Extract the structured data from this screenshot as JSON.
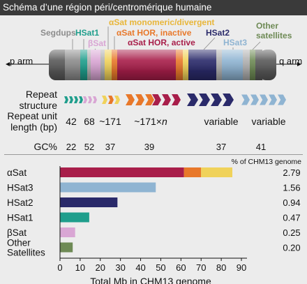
{
  "header": {
    "title": "Schéma d’une région péri/centromérique humaine"
  },
  "diagram": {
    "labels": {
      "segdups": "Segdups",
      "hsat1": "HSat1",
      "bsat": "βSat",
      "asat_mono": "αSat monomeric/divergent",
      "asat_inactive": "αSat HOR, inactive",
      "asat_active": "αSat HOR, active",
      "hsat2": "HSat2",
      "hsat3": "HSat3",
      "other_satellites": "Other\nsatellites",
      "p_arm": "p arm",
      "q_arm": "q arm"
    },
    "rows": {
      "repeat_structure": "Repeat\nstructure",
      "unit_length": "Repeat unit\nlength (bp)",
      "gc": "GC%"
    },
    "unit_lengths": [
      "42",
      "68",
      "~171",
      "~171×n",
      "variable",
      "variable"
    ],
    "gc_values": [
      "22",
      "52",
      "37",
      "39",
      "37",
      "41"
    ],
    "colors": {
      "segdups": "#8c8c8c",
      "hsat1": "#1f9e8c",
      "bsat": "#d9a6d4",
      "asat_mono": "#f0d25a",
      "asat_inactive": "#e8782a",
      "asat_active": "#a81e4a",
      "hsat2": "#2a2a6a",
      "hsat3": "#8fb4d2",
      "other_satellites": "#6e8a55"
    }
  },
  "chart_data": {
    "type": "bar",
    "orientation": "horizontal",
    "stacked": true,
    "categories": [
      "αSat",
      "HSat3",
      "HSat2",
      "HSat1",
      "βSat",
      "Other\nSatellites"
    ],
    "series": [
      {
        "name": "αSat HOR, active",
        "values": [
          61.5,
          47.5,
          28.5,
          14.5,
          7.5,
          6.3
        ]
      },
      {
        "name": "αSat HOR, inactive",
        "values": [
          8.5,
          0,
          0,
          0,
          0,
          0
        ]
      },
      {
        "name": "αSat monomeric/divergent",
        "values": [
          15.5,
          0,
          0,
          0,
          0,
          0
        ]
      }
    ],
    "bar_colors": [
      "#a81e4a",
      "#8fb4d2",
      "#2a2a6a",
      "#1f9e8c",
      "#d9a6d4",
      "#6e8a55"
    ],
    "percent_header": "% of CHM13 genome",
    "percent_values": [
      "2.79",
      "1.56",
      "0.94",
      "0.47",
      "0.25",
      "0.20"
    ],
    "xlabel": "Total Mb in CHM13 genome",
    "xticks": [
      0,
      10,
      20,
      30,
      40,
      50,
      60,
      70,
      80,
      90
    ],
    "xlim": [
      0,
      90
    ]
  }
}
